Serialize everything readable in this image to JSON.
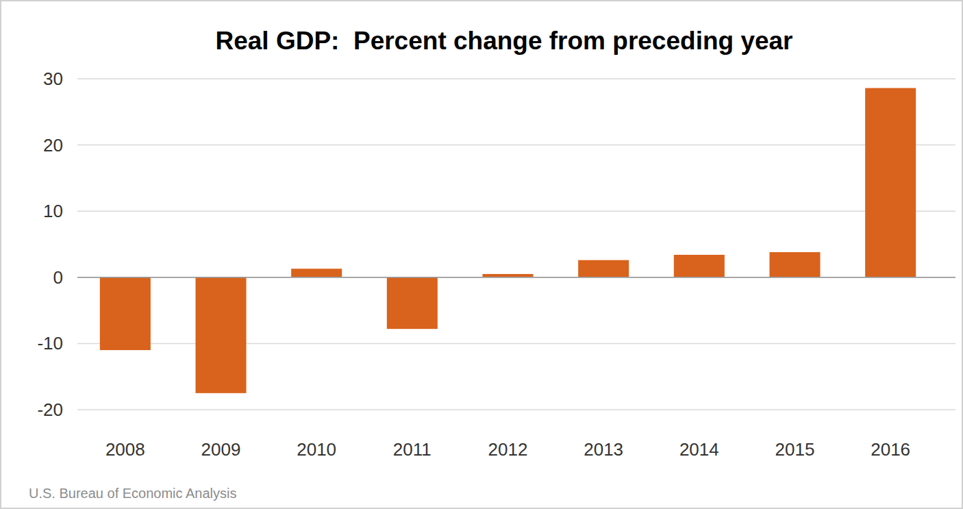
{
  "chart_data": {
    "type": "bar",
    "title": "Real GDP:  Percent change from preceding year",
    "source": "U.S. Bureau of Economic Analysis",
    "categories": [
      "2008",
      "2009",
      "2010",
      "2011",
      "2012",
      "2013",
      "2014",
      "2015",
      "2016"
    ],
    "values": [
      -11,
      -17.5,
      1.3,
      -7.8,
      0.5,
      2.6,
      3.4,
      3.8,
      28.6
    ],
    "color": "#d9621c",
    "ylim": [
      -20,
      30
    ],
    "yticks": [
      -20,
      -10,
      0,
      10,
      20,
      30
    ],
    "grid": true
  }
}
